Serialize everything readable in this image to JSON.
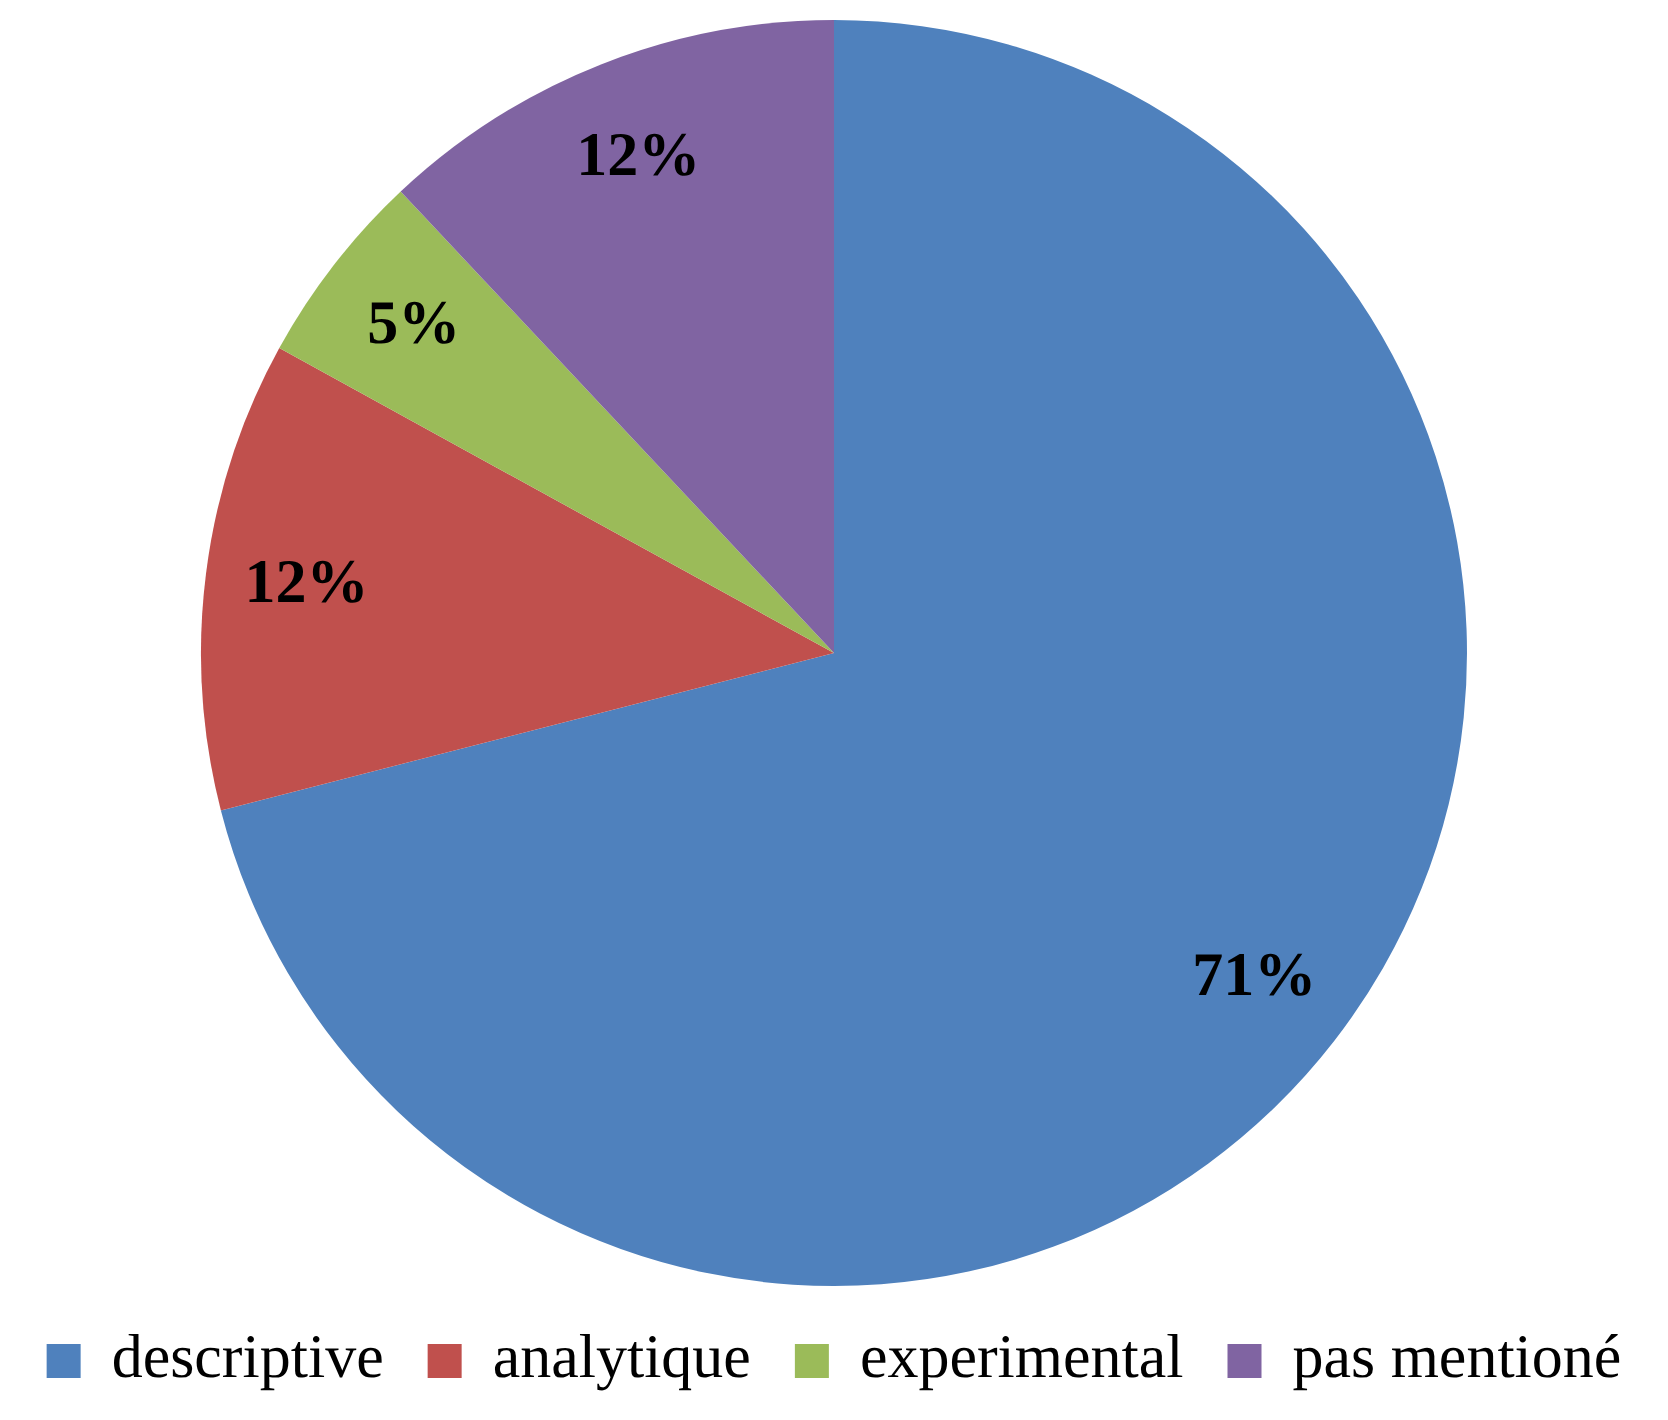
{
  "chart_data": {
    "type": "pie",
    "categories": [
      "descriptive",
      "analytique",
      "experimental",
      "pas mentioné"
    ],
    "values": [
      71,
      12,
      5,
      12
    ],
    "colors": [
      "#4f81bd",
      "#c0504d",
      "#9bbb59",
      "#8064a2"
    ],
    "value_labels": [
      "71%",
      "12%",
      "5%",
      "12%"
    ],
    "legend": "bottom"
  }
}
